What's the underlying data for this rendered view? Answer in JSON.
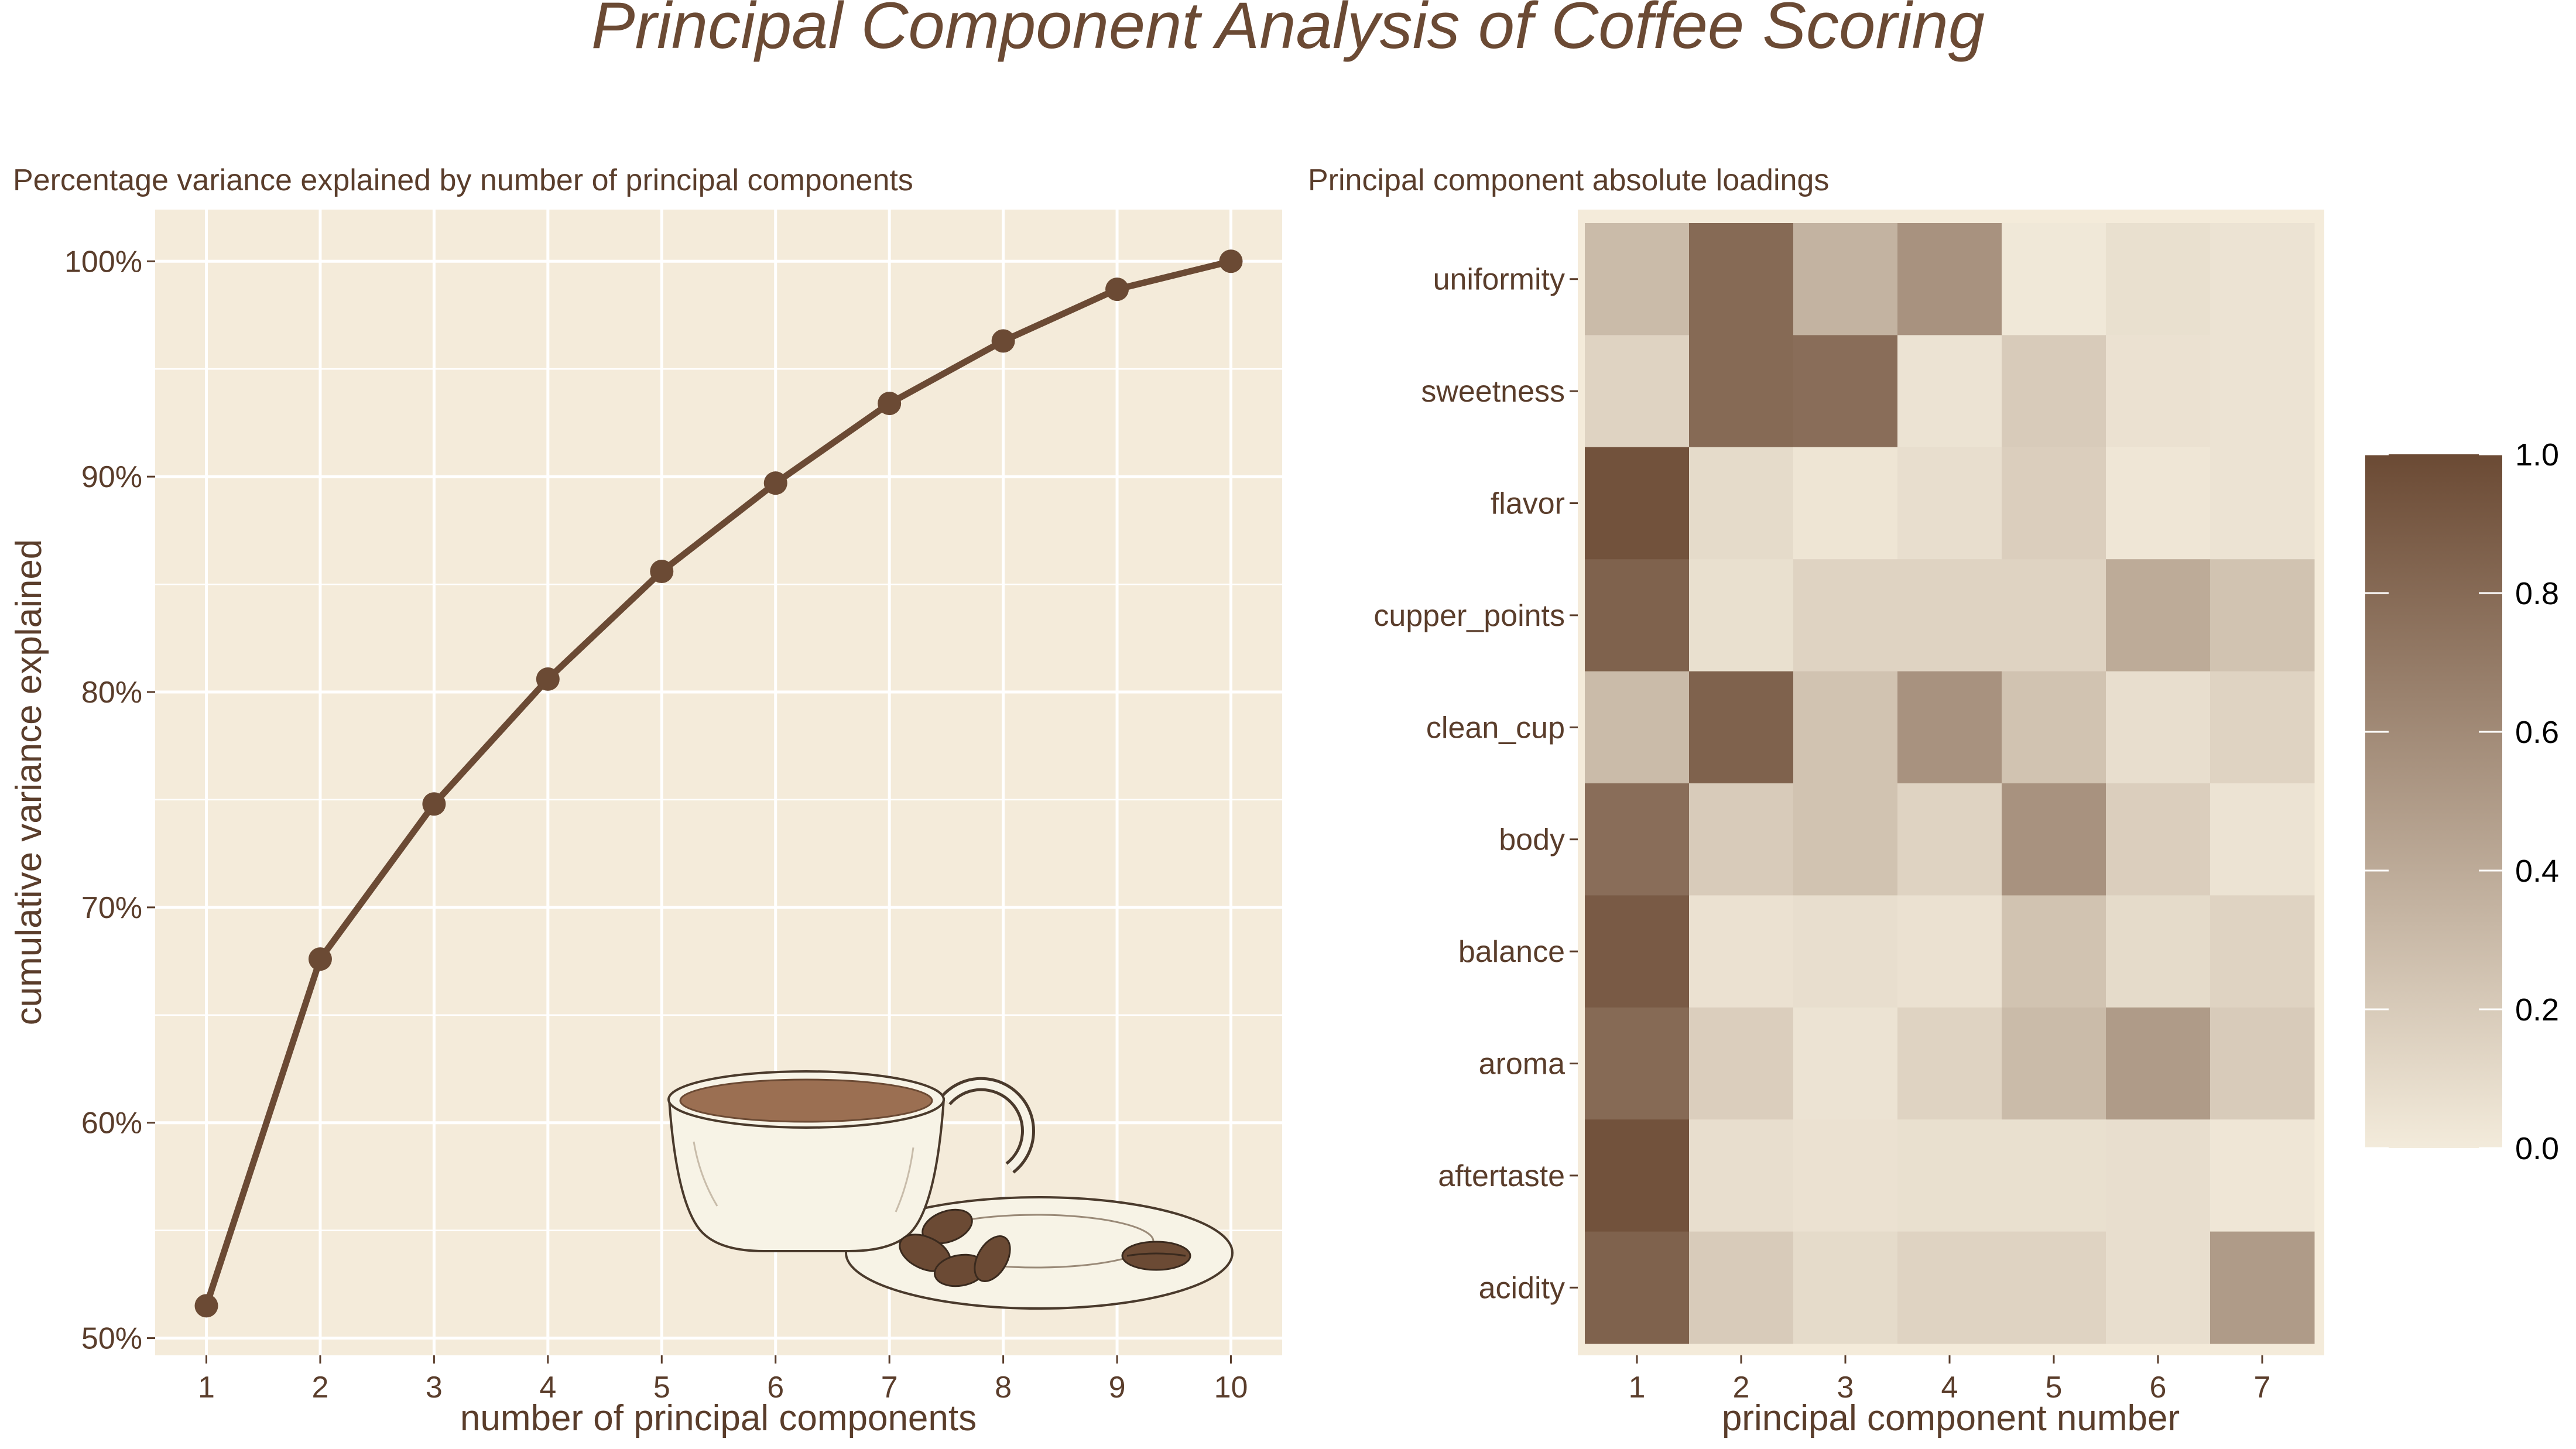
{
  "title": "Principal Component Analysis of Coffee Scoring",
  "colors": {
    "panel_bg": "#f4ebda",
    "grid": "#ffffff",
    "line": "#6b4a34",
    "text": "#5a3d2b",
    "heat_low": "#f3ebdb",
    "heat_high": "#6b4a34"
  },
  "chart_data": [
    {
      "type": "line",
      "subtitle": "Percentage variance explained by number of principal components",
      "xlabel": "number of principal components",
      "ylabel": "cumulative variance explained",
      "x": [
        1,
        2,
        3,
        4,
        5,
        6,
        7,
        8,
        9,
        10
      ],
      "y": [
        51.5,
        67.6,
        74.8,
        80.6,
        85.6,
        89.7,
        93.4,
        96.3,
        98.7,
        100.0
      ],
      "xlim": [
        0.55,
        10.45
      ],
      "ylim": [
        49.2,
        102.4
      ],
      "xticks": [
        "1",
        "2",
        "3",
        "4",
        "5",
        "6",
        "7",
        "8",
        "9",
        "10"
      ],
      "yticks": [
        {
          "value": 50,
          "label": "50%"
        },
        {
          "value": 60,
          "label": "60%"
        },
        {
          "value": 70,
          "label": "70%"
        },
        {
          "value": 80,
          "label": "80%"
        },
        {
          "value": 90,
          "label": "90%"
        },
        {
          "value": 100,
          "label": "100%"
        }
      ],
      "grid": true
    },
    {
      "type": "heatmap",
      "subtitle": "Principal component absolute loadings",
      "xlabel": "principal component number",
      "ylabel": "",
      "x_categories": [
        "1",
        "2",
        "3",
        "4",
        "5",
        "6",
        "7"
      ],
      "y_categories": [
        "uniformity",
        "sweetness",
        "flavor",
        "cupper_points",
        "clean_cup",
        "body",
        "balance",
        "aroma",
        "aftertaste",
        "acidity"
      ],
      "values": [
        [
          0.3,
          0.8,
          0.35,
          0.55,
          0.02,
          0.07,
          0.05
        ],
        [
          0.15,
          0.8,
          0.78,
          0.05,
          0.2,
          0.06,
          0.05
        ],
        [
          0.95,
          0.1,
          0.04,
          0.08,
          0.18,
          0.03,
          0.05
        ],
        [
          0.85,
          0.07,
          0.15,
          0.15,
          0.15,
          0.4,
          0.25
        ],
        [
          0.3,
          0.85,
          0.25,
          0.55,
          0.25,
          0.08,
          0.15
        ],
        [
          0.78,
          0.2,
          0.25,
          0.15,
          0.55,
          0.18,
          0.05
        ],
        [
          0.9,
          0.06,
          0.08,
          0.06,
          0.25,
          0.1,
          0.15
        ],
        [
          0.8,
          0.18,
          0.05,
          0.15,
          0.3,
          0.5,
          0.2
        ],
        [
          0.95,
          0.08,
          0.06,
          0.07,
          0.07,
          0.08,
          0.03
        ],
        [
          0.85,
          0.2,
          0.1,
          0.15,
          0.15,
          0.08,
          0.5
        ]
      ],
      "legend": {
        "min": 0.0,
        "max": 1.0,
        "ticks": [
          {
            "value": 0.0,
            "label": "0.0"
          },
          {
            "value": 0.2,
            "label": "0.2"
          },
          {
            "value": 0.4,
            "label": "0.4"
          },
          {
            "value": 0.6,
            "label": "0.6"
          },
          {
            "value": 0.8,
            "label": "0.8"
          },
          {
            "value": 1.0,
            "label": "1.0"
          }
        ],
        "placement": "right"
      }
    }
  ]
}
